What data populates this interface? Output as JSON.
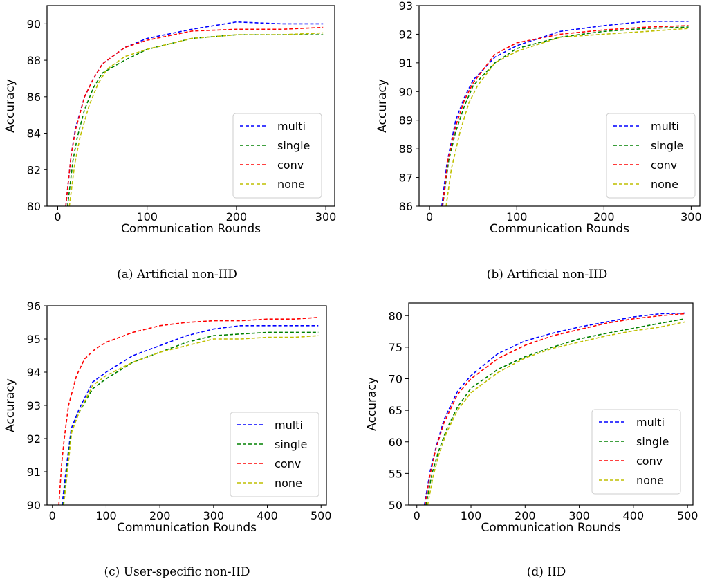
{
  "figure": {
    "panels": [
      {
        "caption": "(a)  Artificial non-IID",
        "xlabel": "Communication Rounds",
        "ylabel": "Accuracy",
        "xlim": [
          -12,
          310
        ],
        "ylim": [
          80,
          91
        ],
        "xticks": [
          0,
          100,
          200,
          300
        ],
        "yticks": [
          80,
          82,
          84,
          86,
          88,
          90
        ]
      },
      {
        "caption": "(b)  Artificial non-IID",
        "xlabel": "Communication Rounds",
        "ylabel": "Accuracy",
        "xlim": [
          -12,
          310
        ],
        "ylim": [
          86,
          93
        ],
        "xticks": [
          0,
          100,
          200,
          300
        ],
        "yticks": [
          86,
          87,
          88,
          89,
          90,
          91,
          92,
          93
        ]
      },
      {
        "caption": "(c)  User-specific non-IID",
        "xlabel": "Communication Rounds",
        "ylabel": "Accuracy",
        "xlim": [
          -10,
          510
        ],
        "ylim": [
          90,
          96
        ],
        "xticks": [
          0,
          100,
          200,
          300,
          400,
          500
        ],
        "yticks": [
          90,
          91,
          92,
          93,
          94,
          95,
          96
        ]
      },
      {
        "caption": "(d)  IID",
        "xlabel": "Communication Rounds",
        "ylabel": "Accuracy",
        "xlim": [
          -15,
          510
        ],
        "ylim": [
          50,
          82
        ],
        "xticks": [
          0,
          100,
          200,
          300,
          400,
          500
        ],
        "yticks": [
          50,
          55,
          60,
          65,
          70,
          75,
          80
        ]
      }
    ]
  },
  "chart_data": [
    {
      "type": "line",
      "xlabel": "Communication Rounds",
      "ylabel": "Accuracy",
      "xlim": [
        -12,
        310
      ],
      "ylim": [
        80,
        91
      ],
      "legend_position": "bottom-right",
      "grid": false,
      "series": [
        {
          "name": "multi",
          "color": "#0000ff",
          "style": "dashed",
          "x": [
            9,
            15,
            20,
            30,
            40,
            50,
            75,
            100,
            150,
            200,
            250,
            297
          ],
          "y": [
            80,
            82.8,
            84.3,
            86.0,
            87.0,
            87.8,
            88.7,
            89.2,
            89.7,
            90.1,
            90.0,
            90.0
          ]
        },
        {
          "name": "single",
          "color": "#008000",
          "style": "dashed",
          "x": [
            11,
            17,
            22,
            30,
            40,
            50,
            75,
            100,
            150,
            200,
            250,
            297
          ],
          "y": [
            80,
            82.5,
            83.8,
            85.3,
            86.5,
            87.3,
            88.0,
            88.6,
            89.2,
            89.4,
            89.4,
            89.4
          ]
        },
        {
          "name": "conv",
          "color": "#ff0000",
          "style": "dashed",
          "x": [
            9,
            15,
            20,
            30,
            40,
            50,
            75,
            100,
            150,
            200,
            250,
            297
          ],
          "y": [
            80,
            82.8,
            84.2,
            86.0,
            87.0,
            87.8,
            88.7,
            89.1,
            89.6,
            89.7,
            89.7,
            89.8
          ]
        },
        {
          "name": "none",
          "color": "#bfbf00",
          "style": "dashed",
          "x": [
            13,
            19,
            25,
            35,
            45,
            55,
            75,
            100,
            150,
            200,
            250,
            297
          ],
          "y": [
            80,
            82.3,
            83.8,
            85.5,
            86.7,
            87.5,
            88.2,
            88.6,
            89.2,
            89.4,
            89.4,
            89.5
          ]
        }
      ]
    },
    {
      "type": "line",
      "xlabel": "Communication Rounds",
      "ylabel": "Accuracy",
      "xlim": [
        -12,
        310
      ],
      "ylim": [
        86,
        93
      ],
      "legend_position": "bottom-right",
      "grid": false,
      "series": [
        {
          "name": "multi",
          "color": "#0000ff",
          "style": "dashed",
          "x": [
            14,
            20,
            30,
            40,
            50,
            75,
            100,
            150,
            200,
            250,
            297
          ],
          "y": [
            86,
            87.5,
            89.0,
            89.8,
            90.4,
            91.2,
            91.6,
            92.1,
            92.3,
            92.45,
            92.45
          ]
        },
        {
          "name": "single",
          "color": "#008000",
          "style": "dashed",
          "x": [
            15,
            22,
            30,
            40,
            50,
            75,
            100,
            150,
            200,
            250,
            297
          ],
          "y": [
            86,
            87.6,
            88.6,
            89.5,
            90.2,
            91.0,
            91.5,
            91.9,
            92.1,
            92.2,
            92.25
          ]
        },
        {
          "name": "conv",
          "color": "#ff0000",
          "style": "dashed",
          "x": [
            15,
            21,
            30,
            40,
            50,
            75,
            100,
            150,
            200,
            250,
            297
          ],
          "y": [
            86,
            87.6,
            88.8,
            89.7,
            90.3,
            91.3,
            91.7,
            92.0,
            92.15,
            92.25,
            92.3
          ]
        },
        {
          "name": "none",
          "color": "#bfbf00",
          "style": "dashed",
          "x": [
            19,
            25,
            35,
            45,
            55,
            75,
            100,
            150,
            200,
            250,
            297
          ],
          "y": [
            86,
            87.3,
            88.6,
            89.6,
            90.2,
            91.0,
            91.4,
            91.9,
            92.0,
            92.1,
            92.2
          ]
        }
      ]
    },
    {
      "type": "line",
      "xlabel": "Communication Rounds",
      "ylabel": "Accuracy",
      "xlim": [
        -10,
        510
      ],
      "ylim": [
        90,
        96
      ],
      "legend_position": "bottom-right",
      "grid": false,
      "series": [
        {
          "name": "multi",
          "color": "#0000ff",
          "style": "dashed",
          "x": [
            18,
            25,
            35,
            50,
            75,
            100,
            150,
            200,
            250,
            300,
            350,
            400,
            450,
            495
          ],
          "y": [
            90,
            91.0,
            92.3,
            92.9,
            93.7,
            94.0,
            94.5,
            94.8,
            95.1,
            95.3,
            95.4,
            95.4,
            95.4,
            95.4
          ]
        },
        {
          "name": "single",
          "color": "#008000",
          "style": "dashed",
          "x": [
            20,
            27,
            35,
            50,
            75,
            100,
            150,
            200,
            250,
            300,
            350,
            400,
            450,
            495
          ],
          "y": [
            90,
            91.0,
            92.2,
            92.8,
            93.5,
            93.8,
            94.3,
            94.6,
            94.9,
            95.1,
            95.15,
            95.2,
            95.2,
            95.2
          ]
        },
        {
          "name": "conv",
          "color": "#ff0000",
          "style": "dashed",
          "x": [
            12,
            17,
            22,
            30,
            45,
            60,
            80,
            100,
            150,
            200,
            250,
            300,
            350,
            400,
            450,
            495
          ],
          "y": [
            90,
            91.2,
            92.0,
            93.0,
            93.9,
            94.4,
            94.7,
            94.9,
            95.2,
            95.4,
            95.5,
            95.55,
            95.55,
            95.6,
            95.6,
            95.65
          ]
        },
        {
          "name": "none",
          "color": "#bfbf00",
          "style": "dashed",
          "x": [
            21,
            28,
            36,
            50,
            75,
            100,
            150,
            200,
            250,
            300,
            350,
            400,
            450,
            495
          ],
          "y": [
            90,
            91.0,
            92.2,
            92.8,
            93.6,
            93.9,
            94.3,
            94.6,
            94.8,
            95.0,
            95.0,
            95.05,
            95.05,
            95.1
          ]
        }
      ]
    },
    {
      "type": "line",
      "xlabel": "Communication Rounds",
      "ylabel": "Accuracy",
      "xlim": [
        -15,
        510
      ],
      "ylim": [
        50,
        82
      ],
      "legend_position": "bottom-right",
      "grid": false,
      "series": [
        {
          "name": "multi",
          "color": "#0000ff",
          "style": "dashed",
          "x": [
            14,
            25,
            35,
            50,
            75,
            100,
            150,
            200,
            250,
            300,
            350,
            400,
            450,
            495
          ],
          "y": [
            50,
            55.5,
            59.0,
            63.5,
            68.0,
            70.5,
            74.0,
            76.0,
            77.2,
            78.2,
            79.0,
            79.8,
            80.3,
            80.4
          ]
        },
        {
          "name": "single",
          "color": "#008000",
          "style": "dashed",
          "x": [
            17,
            28,
            40,
            55,
            75,
            100,
            150,
            200,
            250,
            300,
            350,
            400,
            450,
            495
          ],
          "y": [
            50,
            55.0,
            58.5,
            62.0,
            65.5,
            68.5,
            71.5,
            73.5,
            75.0,
            76.3,
            77.2,
            78.0,
            78.8,
            79.5
          ]
        },
        {
          "name": "conv",
          "color": "#ff0000",
          "style": "dashed",
          "x": [
            15,
            25,
            35,
            50,
            75,
            100,
            150,
            200,
            250,
            300,
            350,
            400,
            450,
            495
          ],
          "y": [
            50,
            55.0,
            58.8,
            63.0,
            67.5,
            70.0,
            73.2,
            75.3,
            76.8,
            77.8,
            78.8,
            79.5,
            80.0,
            80.3
          ]
        },
        {
          "name": "none",
          "color": "#bfbf00",
          "style": "dashed",
          "x": [
            20,
            30,
            40,
            55,
            75,
            100,
            150,
            200,
            250,
            300,
            350,
            400,
            450,
            495
          ],
          "y": [
            50,
            54.5,
            57.8,
            61.5,
            65.0,
            67.8,
            71.0,
            73.3,
            74.8,
            75.8,
            76.8,
            77.6,
            78.2,
            79.0
          ]
        }
      ]
    }
  ]
}
